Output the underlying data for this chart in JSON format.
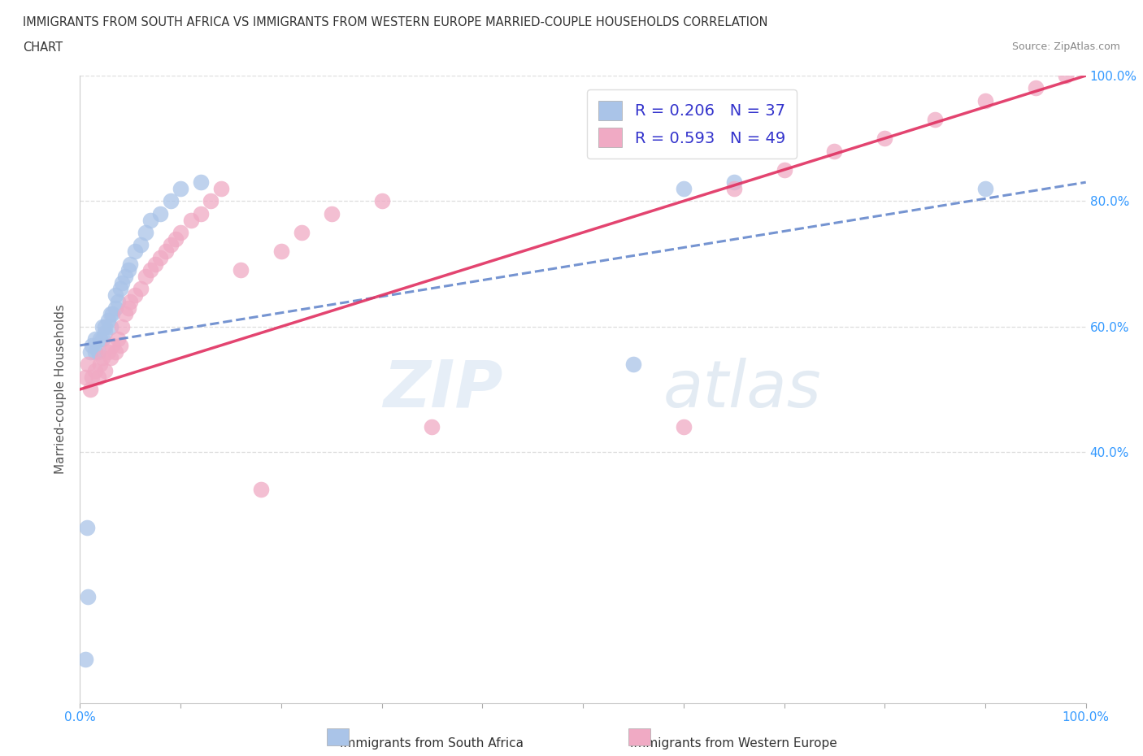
{
  "title_line1": "IMMIGRANTS FROM SOUTH AFRICA VS IMMIGRANTS FROM WESTERN EUROPE MARRIED-COUPLE HOUSEHOLDS CORRELATION",
  "title_line2": "CHART",
  "source": "Source: ZipAtlas.com",
  "ylabel": "Married-couple Households",
  "watermark_zip": "ZIP",
  "watermark_atlas": "atlas",
  "blue_R": 0.206,
  "blue_N": 37,
  "pink_R": 0.593,
  "pink_N": 49,
  "blue_color": "#aac4e8",
  "pink_color": "#f0aac4",
  "blue_line_color": "#6688cc",
  "pink_line_color": "#e03060",
  "legend_label_blue": "Immigrants from South Africa",
  "legend_label_pink": "Immigrants from Western Europe",
  "xmin": 0.0,
  "xmax": 1.0,
  "ymin": 0.0,
  "ymax": 1.0,
  "blue_scatter_x": [
    0.005,
    0.007,
    0.008,
    0.01,
    0.012,
    0.015,
    0.015,
    0.018,
    0.02,
    0.022,
    0.022,
    0.025,
    0.025,
    0.028,
    0.03,
    0.03,
    0.032,
    0.035,
    0.035,
    0.038,
    0.04,
    0.042,
    0.045,
    0.048,
    0.05,
    0.055,
    0.06,
    0.065,
    0.07,
    0.08,
    0.09,
    0.1,
    0.12,
    0.55,
    0.6,
    0.65,
    0.9
  ],
  "blue_scatter_y": [
    0.07,
    0.28,
    0.17,
    0.56,
    0.57,
    0.56,
    0.58,
    0.56,
    0.58,
    0.58,
    0.6,
    0.59,
    0.6,
    0.61,
    0.6,
    0.62,
    0.62,
    0.63,
    0.65,
    0.64,
    0.66,
    0.67,
    0.68,
    0.69,
    0.7,
    0.72,
    0.73,
    0.75,
    0.77,
    0.78,
    0.8,
    0.82,
    0.83,
    0.54,
    0.82,
    0.83,
    0.82
  ],
  "pink_scatter_x": [
    0.005,
    0.008,
    0.01,
    0.012,
    0.015,
    0.018,
    0.02,
    0.022,
    0.025,
    0.028,
    0.03,
    0.032,
    0.035,
    0.038,
    0.04,
    0.042,
    0.045,
    0.048,
    0.05,
    0.055,
    0.06,
    0.065,
    0.07,
    0.075,
    0.08,
    0.085,
    0.09,
    0.095,
    0.1,
    0.11,
    0.12,
    0.13,
    0.14,
    0.16,
    0.18,
    0.2,
    0.22,
    0.25,
    0.3,
    0.35,
    0.6,
    0.65,
    0.7,
    0.75,
    0.8,
    0.85,
    0.9,
    0.95,
    0.98
  ],
  "pink_scatter_y": [
    0.52,
    0.54,
    0.5,
    0.52,
    0.53,
    0.52,
    0.54,
    0.55,
    0.53,
    0.56,
    0.55,
    0.57,
    0.56,
    0.58,
    0.57,
    0.6,
    0.62,
    0.63,
    0.64,
    0.65,
    0.66,
    0.68,
    0.69,
    0.7,
    0.71,
    0.72,
    0.73,
    0.74,
    0.75,
    0.77,
    0.78,
    0.8,
    0.82,
    0.69,
    0.34,
    0.72,
    0.75,
    0.78,
    0.8,
    0.44,
    0.44,
    0.82,
    0.85,
    0.88,
    0.9,
    0.93,
    0.96,
    0.98,
    1.0
  ],
  "yticks_right": [
    0.4,
    0.6,
    0.8,
    1.0
  ],
  "ytick_right_labels": [
    "40.0%",
    "60.0%",
    "80.0%",
    "100.0%"
  ],
  "xtick_positions": [
    0.0,
    0.1,
    0.2,
    0.3,
    0.4,
    0.5,
    0.6,
    0.7,
    0.8,
    0.9,
    1.0
  ],
  "grid_yticks": [
    0.4,
    0.6,
    0.8,
    1.0
  ],
  "background_color": "#ffffff",
  "grid_color": "#dddddd",
  "blue_line_x0": 0.0,
  "blue_line_x1": 1.0,
  "blue_line_y0": 0.57,
  "blue_line_y1": 0.83,
  "pink_line_x0": 0.0,
  "pink_line_x1": 1.0,
  "pink_line_y0": 0.5,
  "pink_line_y1": 1.0
}
